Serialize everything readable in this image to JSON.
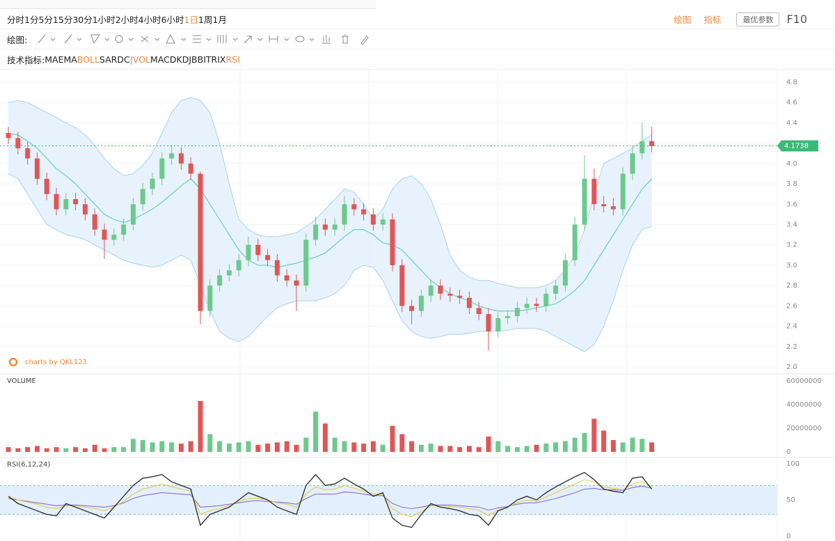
{
  "toolbar": {
    "periods": [
      "分时",
      "1分",
      "5分",
      "15分",
      "30分",
      "1小时",
      "2小时",
      "4小时",
      "6小时",
      "1日",
      "1周",
      "1月"
    ],
    "active_period": 9,
    "actions": [
      "绘图",
      "指标"
    ],
    "button": "最优参数",
    "f10": "F10",
    "drawing_label": "绘图:",
    "indicator_label": "技术指标:",
    "main_indicators": [
      "MA",
      "EMA",
      "BOLL",
      "SAR",
      "DC"
    ],
    "separator": "|",
    "sub_indicators": [
      "VOL",
      "MACD",
      "KDJ",
      "BBI",
      "TRIX",
      "RSI"
    ],
    "active_main": [
      2
    ],
    "active_sub": [
      0,
      5
    ],
    "active_color": "#f0893c"
  },
  "chart_data": [
    {
      "type": "candlestick",
      "watermark": "charts by QKL123",
      "up_color": "#6cc98c",
      "down_color": "#e25555",
      "grid": true,
      "open": [
        4.3,
        4.25,
        4.15,
        4.05,
        3.85,
        3.7,
        3.55,
        3.65,
        3.6,
        3.5,
        3.35,
        3.25,
        3.3,
        3.4,
        3.6,
        3.75,
        3.85,
        4.05,
        4.1,
        4.0,
        3.9,
        2.55,
        2.8,
        2.9,
        2.95,
        3.05,
        3.2,
        3.1,
        3.05,
        2.9,
        2.85,
        2.8,
        3.25,
        3.4,
        3.35,
        3.4,
        3.6,
        3.55,
        3.5,
        3.4,
        3.45,
        3.0,
        2.6,
        2.55,
        2.7,
        2.8,
        2.72,
        2.7,
        2.68,
        2.58,
        2.52,
        2.35,
        2.48,
        2.5,
        2.58,
        2.62,
        2.6,
        2.72,
        2.8,
        3.05,
        3.4,
        3.85,
        3.6,
        3.58,
        3.55,
        3.9,
        4.1,
        4.22
      ],
      "high": [
        4.36,
        4.31,
        4.21,
        4.11,
        3.91,
        3.76,
        3.71,
        3.71,
        3.66,
        3.56,
        3.41,
        3.36,
        3.46,
        3.66,
        3.81,
        3.91,
        4.11,
        4.18,
        4.16,
        4.06,
        3.92,
        2.86,
        2.96,
        3.01,
        3.11,
        3.28,
        3.26,
        3.16,
        3.11,
        2.96,
        2.91,
        3.31,
        3.48,
        3.46,
        3.46,
        3.68,
        3.66,
        3.61,
        3.56,
        3.51,
        3.51,
        3.06,
        2.66,
        2.76,
        2.86,
        2.86,
        2.78,
        2.76,
        2.74,
        2.64,
        2.58,
        2.54,
        2.56,
        2.64,
        2.68,
        2.68,
        2.78,
        2.86,
        3.11,
        3.48,
        4.08,
        3.95,
        3.68,
        3.66,
        3.96,
        4.18,
        4.4,
        4.36
      ],
      "low": [
        4.19,
        4.09,
        3.99,
        3.79,
        3.64,
        3.49,
        3.49,
        3.54,
        3.44,
        3.29,
        3.06,
        3.19,
        3.24,
        3.34,
        3.54,
        3.69,
        3.79,
        3.99,
        3.94,
        3.84,
        2.42,
        2.49,
        2.74,
        2.84,
        2.89,
        2.99,
        3.04,
        2.99,
        2.84,
        2.79,
        2.55,
        2.74,
        3.19,
        3.29,
        3.29,
        3.34,
        3.49,
        3.44,
        3.34,
        3.34,
        2.94,
        2.54,
        2.42,
        2.49,
        2.64,
        2.66,
        2.64,
        2.62,
        2.52,
        2.46,
        2.16,
        2.29,
        2.42,
        2.44,
        2.52,
        2.54,
        2.54,
        2.66,
        2.74,
        2.99,
        3.34,
        3.54,
        3.52,
        3.49,
        3.49,
        3.84,
        4.04,
        4.11
      ],
      "close": [
        4.25,
        4.15,
        4.05,
        3.85,
        3.7,
        3.55,
        3.65,
        3.6,
        3.5,
        3.35,
        3.25,
        3.3,
        3.4,
        3.6,
        3.75,
        3.85,
        4.05,
        4.1,
        4.0,
        3.9,
        2.55,
        2.8,
        2.9,
        2.95,
        3.05,
        3.2,
        3.1,
        3.05,
        2.9,
        2.85,
        2.8,
        3.25,
        3.4,
        3.35,
        3.4,
        3.6,
        3.55,
        3.5,
        3.4,
        3.45,
        3.0,
        2.6,
        2.55,
        2.7,
        2.8,
        2.72,
        2.7,
        2.68,
        2.58,
        2.52,
        2.35,
        2.48,
        2.5,
        2.58,
        2.62,
        2.6,
        2.72,
        2.8,
        3.05,
        3.4,
        3.85,
        3.6,
        3.58,
        3.55,
        3.9,
        4.1,
        4.22,
        4.17
      ],
      "bollinger": {
        "line_color": "#a9d3ee",
        "fill_color": "#e3f0fc",
        "middle_color": "#72d1c4",
        "upper": [
          4.6,
          4.62,
          4.6,
          4.55,
          4.5,
          4.45,
          4.4,
          4.35,
          4.28,
          4.18,
          4.05,
          3.95,
          3.88,
          3.9,
          3.98,
          4.1,
          4.3,
          4.5,
          4.62,
          4.65,
          4.62,
          4.5,
          4.2,
          3.8,
          3.45,
          3.35,
          3.3,
          3.28,
          3.28,
          3.3,
          3.32,
          3.38,
          3.45,
          3.55,
          3.65,
          3.75,
          3.72,
          3.6,
          3.45,
          3.55,
          3.75,
          3.85,
          3.88,
          3.8,
          3.65,
          3.4,
          3.1,
          2.95,
          2.88,
          2.85,
          2.85,
          2.82,
          2.8,
          2.78,
          2.78,
          2.78,
          2.8,
          2.85,
          2.95,
          3.1,
          3.35,
          3.7,
          4.0,
          4.05,
          4.1,
          4.15,
          4.22,
          4.28
        ],
        "middle": [
          4.3,
          4.28,
          4.22,
          4.15,
          4.05,
          3.95,
          3.88,
          3.8,
          3.7,
          3.6,
          3.5,
          3.45,
          3.42,
          3.45,
          3.5,
          3.55,
          3.62,
          3.7,
          3.78,
          3.85,
          3.75,
          3.6,
          3.45,
          3.3,
          3.15,
          3.05,
          3.0,
          3.0,
          2.98,
          3.0,
          3.02,
          3.05,
          3.08,
          3.12,
          3.2,
          3.28,
          3.35,
          3.35,
          3.3,
          3.22,
          3.2,
          3.15,
          3.05,
          2.95,
          2.85,
          2.78,
          2.72,
          2.68,
          2.65,
          2.6,
          2.57,
          2.55,
          2.55,
          2.55,
          2.56,
          2.58,
          2.6,
          2.62,
          2.68,
          2.75,
          2.85,
          3.0,
          3.15,
          3.3,
          3.45,
          3.6,
          3.75,
          3.85
        ],
        "lower": [
          3.9,
          3.85,
          3.7,
          3.55,
          3.4,
          3.35,
          3.3,
          3.28,
          3.25,
          3.2,
          3.15,
          3.1,
          3.05,
          3.02,
          3.0,
          2.98,
          3.0,
          3.05,
          3.1,
          3.05,
          2.8,
          2.55,
          2.35,
          2.28,
          2.25,
          2.3,
          2.4,
          2.5,
          2.58,
          2.62,
          2.65,
          2.65,
          2.65,
          2.68,
          2.72,
          2.8,
          2.95,
          3.0,
          2.98,
          2.85,
          2.65,
          2.45,
          2.35,
          2.3,
          2.28,
          2.3,
          2.32,
          2.32,
          2.33,
          2.35,
          2.35,
          2.35,
          2.36,
          2.38,
          2.38,
          2.38,
          2.35,
          2.3,
          2.25,
          2.2,
          2.15,
          2.22,
          2.4,
          2.65,
          2.95,
          3.2,
          3.35,
          3.38
        ]
      },
      "last_price": 4.1738,
      "last_price_color": "#3cb878",
      "ylim": [
        2,
        4.8
      ],
      "yticks": [
        {
          "value": 2,
          "label": "2.0"
        },
        2.2,
        2.4,
        2.6,
        2.8,
        {
          "value": 3,
          "label": "3.0"
        },
        3.2,
        3.4,
        3.6,
        3.8,
        {
          "value": 4,
          "label": "4.0"
        },
        4.2,
        4.4,
        4.6,
        4.8
      ]
    },
    {
      "type": "bar",
      "title": "VOLUME",
      "values": [
        4000000,
        3000000,
        4000000,
        5000000,
        3000000,
        4000000,
        3000000,
        4000000,
        3000000,
        6000000,
        3000000,
        4000000,
        4000000,
        11000000,
        10000000,
        8000000,
        9000000,
        8000000,
        7000000,
        9000000,
        43000000,
        15000000,
        9000000,
        7000000,
        8000000,
        9000000,
        6000000,
        7000000,
        8000000,
        9000000,
        6000000,
        12000000,
        34000000,
        24000000,
        12000000,
        9000000,
        8000000,
        7000000,
        9000000,
        6000000,
        22000000,
        15000000,
        9000000,
        6000000,
        7000000,
        5000000,
        5000000,
        4000000,
        5000000,
        4000000,
        13000000,
        9000000,
        5000000,
        4000000,
        5000000,
        6000000,
        7000000,
        8000000,
        9000000,
        12000000,
        16000000,
        28000000,
        18000000,
        10000000,
        8000000,
        12000000,
        11000000,
        8000000
      ],
      "ylim": [
        0,
        60000000
      ],
      "yticks": [
        0,
        20000000,
        40000000,
        60000000
      ]
    },
    {
      "type": "line",
      "title": "RSI(6,12,24)",
      "band_color": "#dcebfb",
      "reference_color": "#6bb8b0",
      "series": [
        {
          "name": "RSI6",
          "color": "#333333",
          "values": [
            55,
            45,
            40,
            35,
            30,
            28,
            45,
            40,
            35,
            30,
            25,
            40,
            55,
            70,
            80,
            82,
            85,
            75,
            70,
            65,
            15,
            30,
            35,
            40,
            50,
            60,
            55,
            50,
            40,
            35,
            30,
            70,
            85,
            70,
            72,
            80,
            72,
            65,
            55,
            60,
            25,
            15,
            12,
            30,
            45,
            40,
            38,
            35,
            30,
            28,
            15,
            35,
            40,
            50,
            55,
            50,
            60,
            68,
            75,
            82,
            88,
            78,
            65,
            62,
            60,
            80,
            82,
            65
          ]
        },
        {
          "name": "RSI12",
          "color": "#e8c84a",
          "values": [
            55,
            50,
            47,
            44,
            40,
            38,
            42,
            42,
            40,
            38,
            35,
            40,
            48,
            58,
            65,
            68,
            72,
            68,
            65,
            62,
            30,
            35,
            38,
            42,
            48,
            52,
            52,
            50,
            46,
            44,
            40,
            58,
            68,
            64,
            65,
            70,
            66,
            62,
            58,
            58,
            38,
            30,
            27,
            34,
            42,
            42,
            41,
            40,
            38,
            36,
            28,
            36,
            40,
            46,
            50,
            48,
            54,
            60,
            66,
            72,
            78,
            75,
            68,
            66,
            64,
            72,
            75,
            68
          ]
        },
        {
          "name": "RSI24",
          "color": "#8a6fd6",
          "values": [
            52,
            50,
            48,
            46,
            44,
            42,
            43,
            43,
            42,
            41,
            40,
            42,
            46,
            52,
            56,
            58,
            60,
            59,
            58,
            57,
            40,
            41,
            42,
            44,
            46,
            48,
            49,
            48,
            47,
            46,
            44,
            52,
            58,
            58,
            58,
            61,
            60,
            58,
            56,
            56,
            45,
            40,
            38,
            40,
            43,
            43,
            43,
            42,
            41,
            40,
            36,
            39,
            41,
            44,
            46,
            46,
            49,
            52,
            56,
            60,
            65,
            66,
            64,
            64,
            63,
            67,
            69,
            66
          ]
        }
      ],
      "reference_lines": [
        30,
        70
      ],
      "ylim": [
        0,
        100
      ],
      "yticks": [
        0,
        50,
        100
      ]
    }
  ]
}
